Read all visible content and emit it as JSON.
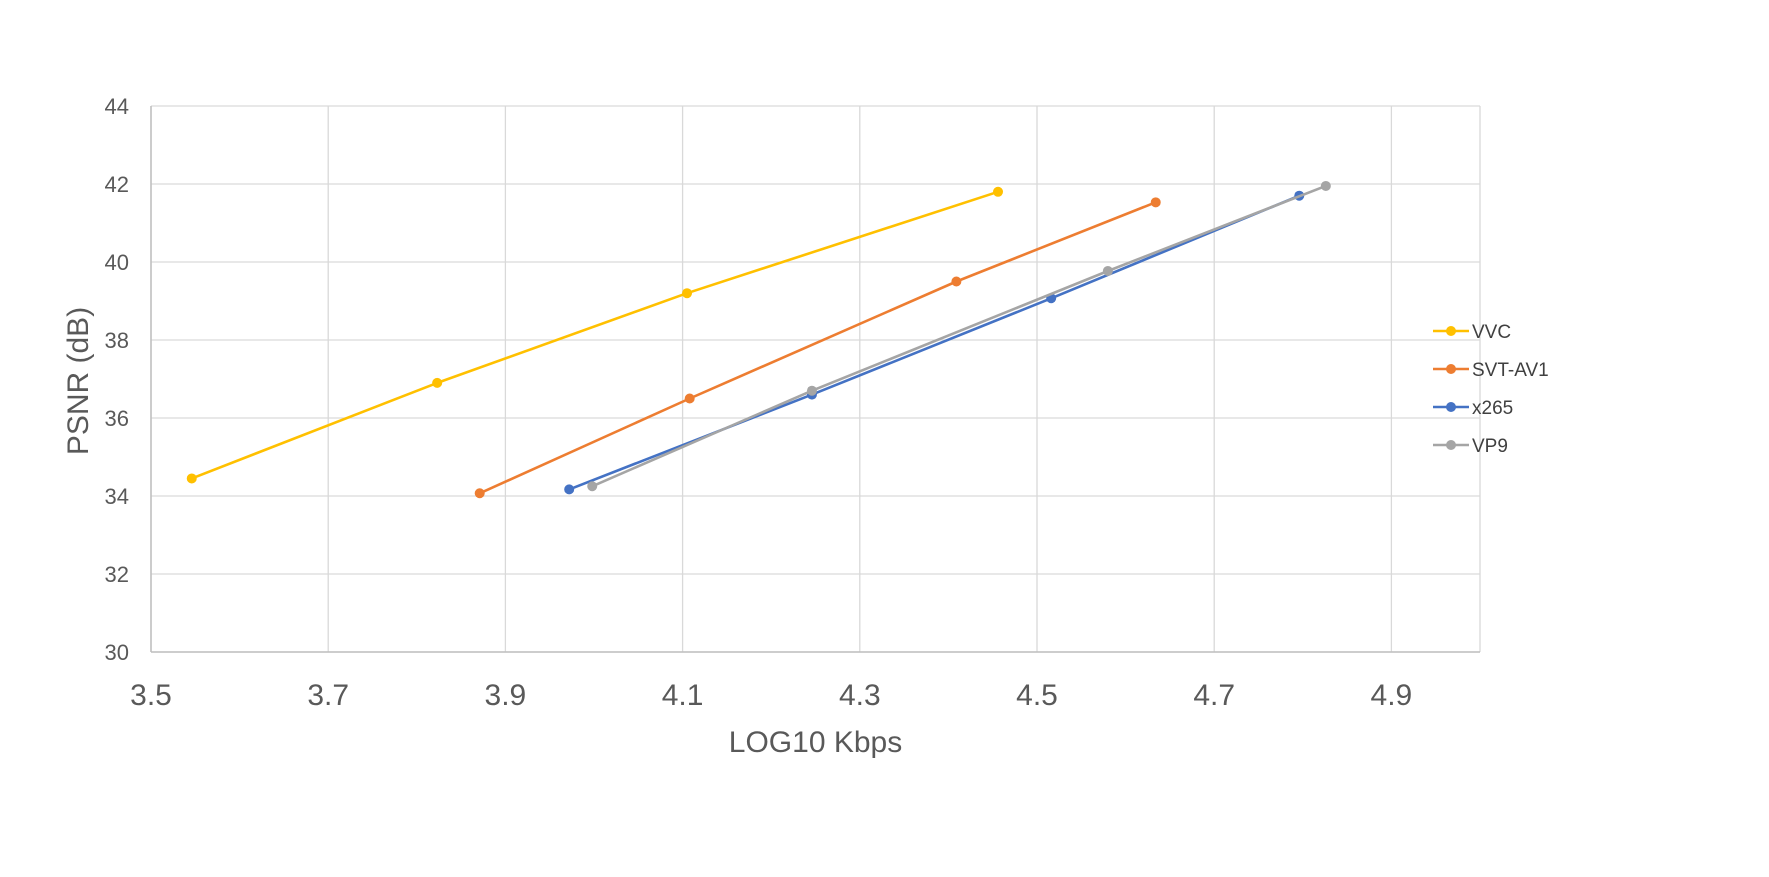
{
  "chart_data": {
    "type": "line",
    "title": "",
    "xlabel": "LOG10 Kbps",
    "ylabel": "PSNR (dB)",
    "xlim": [
      3.5,
      5.0
    ],
    "ylim": [
      30,
      44
    ],
    "xticks": [
      3.5,
      3.7,
      3.9,
      4.1,
      4.3,
      4.5,
      4.7,
      4.9
    ],
    "xtick_labels": [
      "3.5",
      "3.7",
      "3.9",
      "4.1",
      "4.3",
      "4.5",
      "4.7",
      "4.9"
    ],
    "yticks": [
      30,
      32,
      34,
      36,
      38,
      40,
      42,
      44
    ],
    "ytick_labels": [
      "30",
      "32",
      "34",
      "36",
      "38",
      "40",
      "42",
      "44"
    ],
    "grid": true,
    "legend_position": "right",
    "series": [
      {
        "name": "VVC",
        "color": "#FFC000",
        "x": [
          3.546,
          3.823,
          4.105,
          4.456
        ],
        "y": [
          34.45,
          36.9,
          39.2,
          41.8
        ]
      },
      {
        "name": "SVT-AV1",
        "color": "#ED7D31",
        "x": [
          3.871,
          4.108,
          4.409,
          4.634
        ],
        "y": [
          34.07,
          36.5,
          39.5,
          41.53
        ]
      },
      {
        "name": "x265",
        "color": "#4472C4",
        "x": [
          3.972,
          4.246,
          4.516,
          4.796
        ],
        "y": [
          34.17,
          36.6,
          39.07,
          41.7
        ]
      },
      {
        "name": "VP9",
        "color": "#A5A5A5",
        "x": [
          3.998,
          4.246,
          4.58,
          4.826
        ],
        "y": [
          34.25,
          36.7,
          39.77,
          41.95
        ]
      }
    ]
  }
}
